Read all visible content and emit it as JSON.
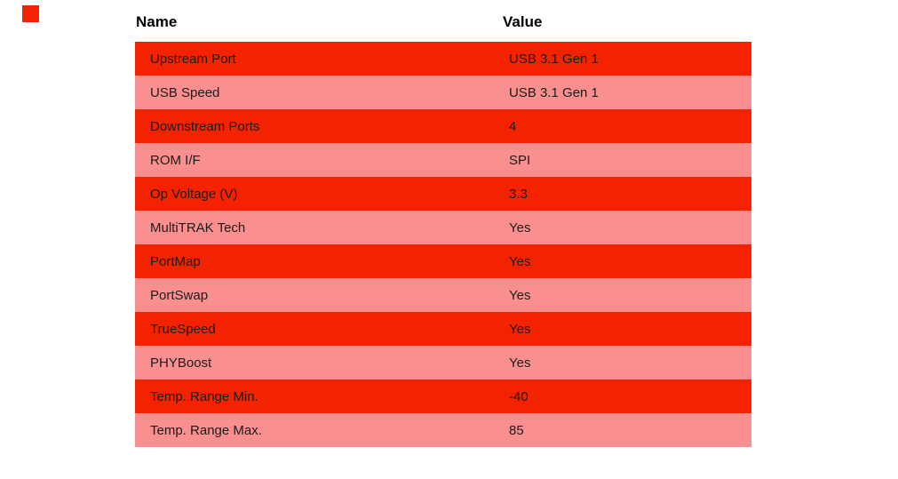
{
  "decoration": {
    "red_square_color": "#f32200"
  },
  "chart_data": {
    "type": "table",
    "headers": [
      "Name",
      "Value"
    ],
    "rows": [
      [
        "Upstream Port",
        "USB 3.1 Gen 1"
      ],
      [
        "USB Speed",
        "USB 3.1 Gen 1"
      ],
      [
        "Downstream Ports",
        "4"
      ],
      [
        "ROM I/F",
        "SPI"
      ],
      [
        "Op Voltage (V)",
        "3.3"
      ],
      [
        "MultiTRAK Tech",
        "Yes"
      ],
      [
        "PortMap",
        "Yes"
      ],
      [
        "PortSwap",
        "Yes"
      ],
      [
        "TrueSpeed",
        "Yes"
      ],
      [
        "PHYBoost",
        "Yes"
      ],
      [
        "Temp. Range Min.",
        "-40"
      ],
      [
        "Temp. Range Max.",
        "85"
      ]
    ],
    "layout": {
      "grid": "off",
      "row_striping": "alternating starting with red",
      "header_background": "#ffffff"
    },
    "colors": {
      "odd_row": "#f32200",
      "even_row": "#f98f8f",
      "header_text": "#000000",
      "row_text": "#1c1c1c"
    }
  }
}
